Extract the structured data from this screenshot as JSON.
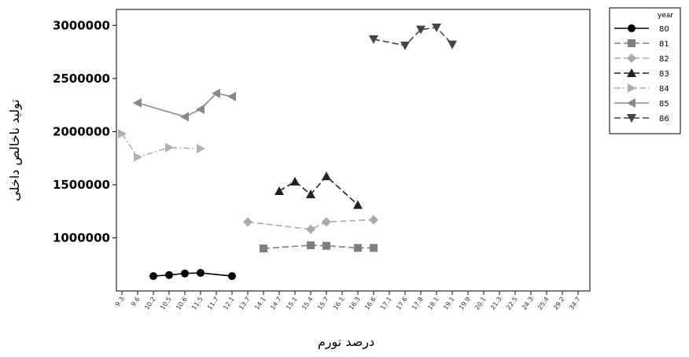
{
  "chart_data": {
    "type": "line",
    "xlabel": "درصد تورم",
    "ylabel": "تولید ناخالص داخلی",
    "y_ticks": [
      1000000,
      1500000,
      2000000,
      2500000,
      3000000
    ],
    "y_tick_labels": [
      "1000000",
      "1500000",
      "2000000",
      "2500000",
      "3000000"
    ],
    "ylim": [
      500000,
      3150000
    ],
    "x_tick_labels": [
      "9.3",
      "9.6",
      "10.2",
      "10.5",
      "10.6",
      "11.5",
      "11.7",
      "12.1",
      "13.7",
      "14.1",
      "14.7",
      "15.1",
      "15.4",
      "15.7",
      "16.1",
      "16.3",
      "16.6",
      "17.1",
      "17.6",
      "17.8",
      "18.1",
      "19.1",
      "19.9",
      "20.1",
      "21.3",
      "22.5",
      "24.3",
      "25.4",
      "29.2",
      "34.7"
    ],
    "x_tick_labels_legible": false,
    "grid": false,
    "legend_position": "right, outside plot",
    "legend_title": "year",
    "series": [
      {
        "name": "80",
        "marker": "circle",
        "line": "solid",
        "color": "#000000",
        "points": [
          [
            2,
            640000
          ],
          [
            3,
            650000
          ],
          [
            4,
            665000
          ],
          [
            5,
            670000
          ],
          [
            7,
            640000
          ]
        ]
      },
      {
        "name": "81",
        "marker": "square",
        "line": "dashed",
        "color": "#7f7f7f",
        "points": [
          [
            9,
            900000
          ],
          [
            12,
            930000
          ],
          [
            13,
            925000
          ],
          [
            15,
            905000
          ],
          [
            16,
            905000
          ]
        ]
      },
      {
        "name": "82",
        "marker": "diamond",
        "line": "dashed",
        "color": "#aaaaaa",
        "points": [
          [
            8,
            1150000
          ],
          [
            12,
            1080000
          ],
          [
            13,
            1150000
          ],
          [
            16,
            1170000
          ]
        ]
      },
      {
        "name": "83",
        "marker": "triangle-up",
        "line": "dashed",
        "color": "#222222",
        "points": [
          [
            10,
            1440000
          ],
          [
            11,
            1530000
          ],
          [
            12,
            1410000
          ],
          [
            13,
            1580000
          ],
          [
            15,
            1310000
          ]
        ]
      },
      {
        "name": "84",
        "marker": "triangle-right",
        "line": "dash-dot",
        "color": "#b0b0b0",
        "points": [
          [
            0,
            1980000
          ],
          [
            1,
            1760000
          ],
          [
            3,
            1850000
          ],
          [
            5,
            1840000
          ]
        ]
      },
      {
        "name": "85",
        "marker": "triangle-left",
        "line": "solid",
        "color": "#888888",
        "points": [
          [
            1,
            2270000
          ],
          [
            4,
            2140000
          ],
          [
            5,
            2210000
          ],
          [
            6,
            2360000
          ],
          [
            7,
            2330000
          ]
        ]
      },
      {
        "name": "86",
        "marker": "triangle-down",
        "line": "dashed",
        "color": "#444444",
        "points": [
          [
            16,
            2870000
          ],
          [
            18,
            2810000
          ],
          [
            19,
            2960000
          ],
          [
            20,
            2980000
          ],
          [
            21,
            2820000
          ]
        ]
      }
    ]
  }
}
